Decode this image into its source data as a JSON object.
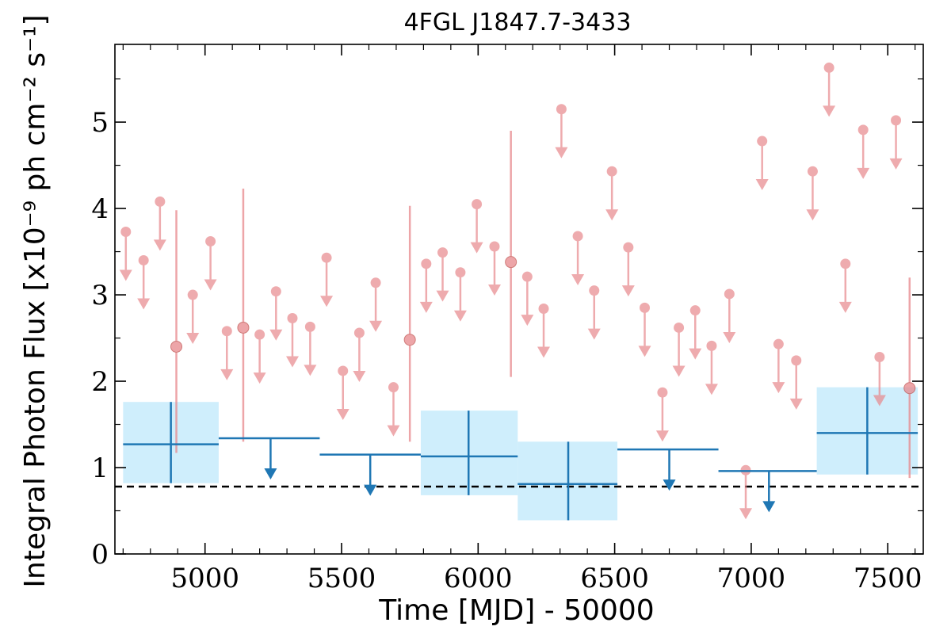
{
  "chart_data": {
    "type": "scatter",
    "title": "4FGL J1847.7-3433",
    "xlabel": "Time [MJD] - 50000",
    "ylabel": "Integral Photon Flux [x10⁻⁹ ph cm⁻² s⁻¹]",
    "xlim": [
      4670,
      7630
    ],
    "ylim": [
      0,
      5.9
    ],
    "xticks": [
      5000,
      5500,
      6000,
      6500,
      7000,
      7500
    ],
    "yticks": [
      0,
      1,
      2,
      3,
      4,
      5
    ],
    "grid": false,
    "reference_line": {
      "y": 0.78,
      "style": "dashed",
      "color": "#000000"
    },
    "colors": {
      "short_bins": "#e8888c",
      "long_bins": "#1f77b4",
      "long_bins_band": "#cfeefc"
    },
    "short_bins": {
      "detections": [
        {
          "x": 4895,
          "y": 2.4,
          "ylo": 1.17,
          "yhi": 3.98
        },
        {
          "x": 5140,
          "y": 2.62,
          "ylo": 1.3,
          "yhi": 4.23
        },
        {
          "x": 5750,
          "y": 2.48,
          "ylo": 1.3,
          "yhi": 4.03
        },
        {
          "x": 6120,
          "y": 3.38,
          "ylo": 2.05,
          "yhi": 4.9
        },
        {
          "x": 7580,
          "y": 1.92,
          "ylo": 0.88,
          "yhi": 3.2
        }
      ],
      "upper_limits": [
        {
          "x": 4710,
          "y": 3.73
        },
        {
          "x": 4775,
          "y": 3.4
        },
        {
          "x": 4835,
          "y": 4.08
        },
        {
          "x": 4955,
          "y": 3.0
        },
        {
          "x": 5020,
          "y": 3.62
        },
        {
          "x": 5080,
          "y": 2.58
        },
        {
          "x": 5200,
          "y": 2.54
        },
        {
          "x": 5260,
          "y": 3.04
        },
        {
          "x": 5320,
          "y": 2.73
        },
        {
          "x": 5385,
          "y": 2.63
        },
        {
          "x": 5445,
          "y": 3.43
        },
        {
          "x": 5505,
          "y": 2.12
        },
        {
          "x": 5565,
          "y": 2.56
        },
        {
          "x": 5625,
          "y": 3.14
        },
        {
          "x": 5690,
          "y": 1.93
        },
        {
          "x": 5810,
          "y": 3.36
        },
        {
          "x": 5870,
          "y": 3.49
        },
        {
          "x": 5935,
          "y": 3.26
        },
        {
          "x": 5995,
          "y": 4.05
        },
        {
          "x": 6060,
          "y": 3.56
        },
        {
          "x": 6180,
          "y": 3.21
        },
        {
          "x": 6240,
          "y": 2.84
        },
        {
          "x": 6305,
          "y": 5.15
        },
        {
          "x": 6365,
          "y": 3.68
        },
        {
          "x": 6425,
          "y": 3.05
        },
        {
          "x": 6490,
          "y": 4.43
        },
        {
          "x": 6550,
          "y": 3.55
        },
        {
          "x": 6610,
          "y": 2.85
        },
        {
          "x": 6675,
          "y": 1.87
        },
        {
          "x": 6735,
          "y": 2.62
        },
        {
          "x": 6795,
          "y": 2.82
        },
        {
          "x": 6855,
          "y": 2.41
        },
        {
          "x": 6920,
          "y": 3.01
        },
        {
          "x": 6980,
          "y": 0.97
        },
        {
          "x": 7040,
          "y": 4.78
        },
        {
          "x": 7100,
          "y": 2.43
        },
        {
          "x": 7165,
          "y": 2.24
        },
        {
          "x": 7225,
          "y": 4.43
        },
        {
          "x": 7285,
          "y": 5.63
        },
        {
          "x": 7345,
          "y": 3.36
        },
        {
          "x": 7410,
          "y": 4.91
        },
        {
          "x": 7470,
          "y": 2.28
        },
        {
          "x": 7530,
          "y": 5.02
        }
      ]
    },
    "long_bins": {
      "detections": [
        {
          "x": 4875,
          "x0": 4700,
          "x1": 5050,
          "y": 1.27,
          "ylo": 0.82,
          "yhi": 1.76
        },
        {
          "x": 5965,
          "x0": 5790,
          "x1": 6145,
          "y": 1.13,
          "ylo": 0.68,
          "yhi": 1.66
        },
        {
          "x": 6330,
          "x0": 6145,
          "x1": 6510,
          "y": 0.81,
          "ylo": 0.39,
          "yhi": 1.3
        },
        {
          "x": 7425,
          "x0": 7240,
          "x1": 7610,
          "y": 1.4,
          "ylo": 0.92,
          "yhi": 1.93
        }
      ],
      "upper_limits": [
        {
          "x": 5240,
          "x0": 5050,
          "x1": 5420,
          "y": 1.34
        },
        {
          "x": 5605,
          "x0": 5420,
          "x1": 5790,
          "y": 1.15
        },
        {
          "x": 6700,
          "x0": 6510,
          "x1": 6880,
          "y": 1.21
        },
        {
          "x": 7065,
          "x0": 6880,
          "x1": 7240,
          "y": 0.96
        }
      ]
    }
  }
}
